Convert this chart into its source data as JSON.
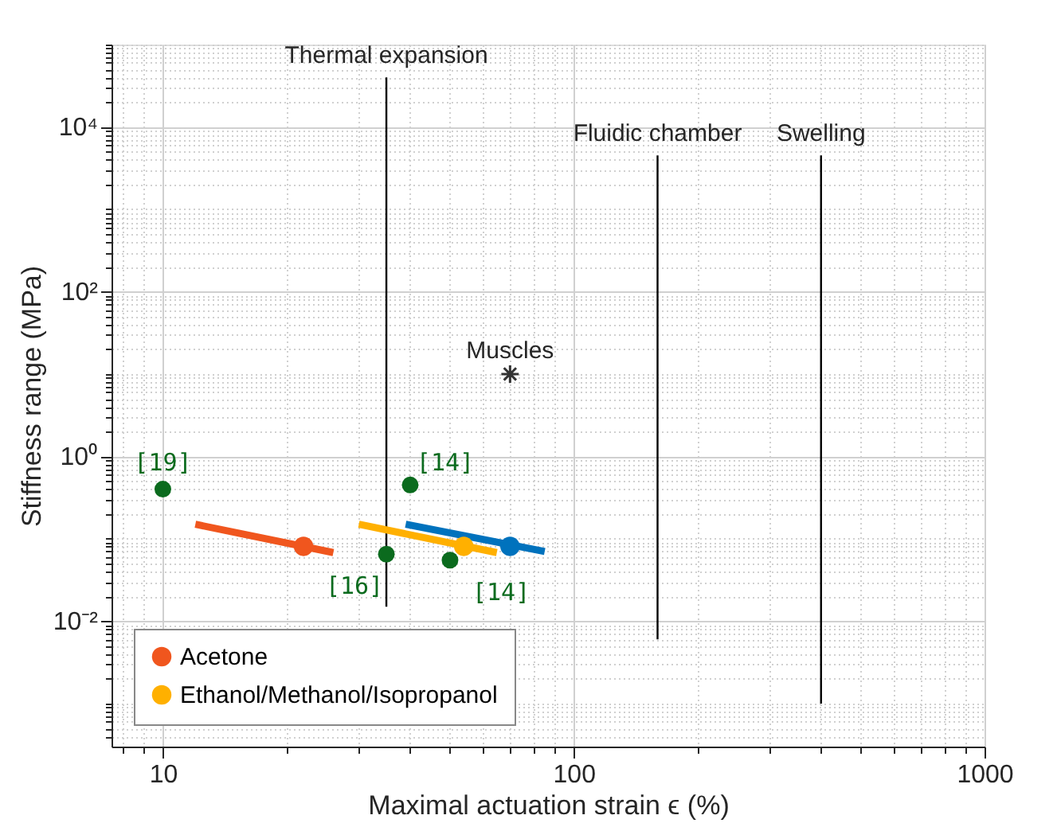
{
  "chart_data": {
    "type": "scatter",
    "xlabel": "Maximal actuation strain ϵ (%)",
    "ylabel": "Stiffness range (MPa)",
    "log": "xy",
    "grid": true,
    "legend": "bottom left",
    "xlim": [
      7.5,
      1000
    ],
    "ylim": [
      0.0003,
      100000
    ],
    "xticks": [
      {
        "value": 8,
        "label": null
      },
      {
        "value": 9,
        "label": null
      },
      10,
      {
        "value": 20,
        "label": null
      },
      {
        "value": 30,
        "label": null
      },
      {
        "value": 40,
        "label": null
      },
      {
        "value": 50,
        "label": null
      },
      {
        "value": 60,
        "label": null
      },
      {
        "value": 70,
        "label": null
      },
      {
        "value": 80,
        "label": null
      },
      {
        "value": 90,
        "label": null
      },
      100,
      {
        "value": 200,
        "label": null
      },
      {
        "value": 300,
        "label": null
      },
      {
        "value": 400,
        "label": null
      },
      {
        "value": 500,
        "label": null
      },
      {
        "value": 600,
        "label": null
      },
      {
        "value": 700,
        "label": null
      },
      {
        "value": 800,
        "label": null
      },
      {
        "value": 900,
        "label": null
      },
      1000
    ],
    "yticks": [
      {
        "value": 0.0004,
        "label": null
      },
      {
        "value": 0.0005,
        "label": null
      },
      {
        "value": 0.0006,
        "label": null
      },
      {
        "value": 0.0007,
        "label": null
      },
      {
        "value": 0.0008,
        "label": null
      },
      {
        "value": 0.0009,
        "label": null
      },
      {
        "value": 0.001,
        "label": null
      },
      {
        "value": 0.002,
        "label": null
      },
      {
        "value": 0.003,
        "label": null
      },
      {
        "value": 0.004,
        "label": null
      },
      {
        "value": 0.005,
        "label": null
      },
      {
        "value": 0.006,
        "label": null
      },
      {
        "value": 0.007,
        "label": null
      },
      {
        "value": 0.008,
        "label": null
      },
      {
        "value": 0.009,
        "label": null
      },
      {
        "value": 0.01,
        "label": "10⁻²"
      },
      {
        "value": 0.02,
        "label": null
      },
      {
        "value": 0.03,
        "label": null
      },
      {
        "value": 0.04,
        "label": null
      },
      {
        "value": 0.05,
        "label": null
      },
      {
        "value": 0.06,
        "label": null
      },
      {
        "value": 0.07,
        "label": null
      },
      {
        "value": 0.08,
        "label": null
      },
      {
        "value": 0.09,
        "label": null
      },
      {
        "value": 0.1,
        "label": null
      },
      {
        "value": 0.2,
        "label": null
      },
      {
        "value": 0.3,
        "label": null
      },
      {
        "value": 0.4,
        "label": null
      },
      {
        "value": 0.5,
        "label": null
      },
      {
        "value": 0.6,
        "label": null
      },
      {
        "value": 0.7,
        "label": null
      },
      {
        "value": 0.8,
        "label": null
      },
      {
        "value": 0.9,
        "label": null
      },
      {
        "value": 1,
        "label": "10⁰"
      },
      {
        "value": 2,
        "label": null
      },
      {
        "value": 3,
        "label": null
      },
      {
        "value": 4,
        "label": null
      },
      {
        "value": 5,
        "label": null
      },
      {
        "value": 6,
        "label": null
      },
      {
        "value": 7,
        "label": null
      },
      {
        "value": 8,
        "label": null
      },
      {
        "value": 9,
        "label": null
      },
      {
        "value": 10,
        "label": null
      },
      {
        "value": 20,
        "label": null
      },
      {
        "value": 30,
        "label": null
      },
      {
        "value": 40,
        "label": null
      },
      {
        "value": 50,
        "label": null
      },
      {
        "value": 60,
        "label": null
      },
      {
        "value": 70,
        "label": null
      },
      {
        "value": 80,
        "label": null
      },
      {
        "value": 90,
        "label": null
      },
      {
        "value": 100,
        "label": "10²"
      },
      {
        "value": 200,
        "label": null
      },
      {
        "value": 300,
        "label": null
      },
      {
        "value": 400,
        "label": null
      },
      {
        "value": 500,
        "label": null
      },
      {
        "value": 600,
        "label": null
      },
      {
        "value": 700,
        "label": null
      },
      {
        "value": 800,
        "label": null
      },
      {
        "value": 900,
        "label": null
      },
      {
        "value": 1000,
        "label": null
      },
      {
        "value": 2000,
        "label": null
      },
      {
        "value": 3000,
        "label": null
      },
      {
        "value": 4000,
        "label": null
      },
      {
        "value": 5000,
        "label": null
      },
      {
        "value": 6000,
        "label": null
      },
      {
        "value": 7000,
        "label": null
      },
      {
        "value": 8000,
        "label": null
      },
      {
        "value": 9000,
        "label": null
      },
      {
        "value": 10000,
        "label": "10⁴"
      },
      {
        "value": 20000,
        "label": null
      },
      {
        "value": 30000,
        "label": null
      },
      {
        "value": 40000,
        "label": null
      },
      {
        "value": 50000,
        "label": null
      },
      {
        "value": 60000,
        "label": null
      },
      {
        "value": 70000,
        "label": null
      },
      {
        "value": 80000,
        "label": null
      },
      {
        "value": 90000,
        "label": null
      },
      {
        "value": 100000,
        "label": null
      }
    ],
    "series": [
      {
        "type": "line",
        "color": "#000000",
        "marker": "none",
        "x": [
          35,
          35
        ],
        "values": [
          0.015,
          40000
        ]
      },
      {
        "type": "line",
        "color": "#000000",
        "marker": "none",
        "x": [
          160,
          160
        ],
        "values": [
          0.006,
          4500
        ]
      },
      {
        "type": "line",
        "color": "#000000",
        "marker": "none",
        "x": [
          400,
          400
        ],
        "values": [
          0.001,
          4500
        ]
      },
      {
        "type": "line",
        "color": "#F0561E",
        "marker": "none",
        "x": [
          12,
          26
        ],
        "values": [
          0.15,
          0.068
        ]
      },
      {
        "type": "line",
        "color": "#FFB000",
        "marker": "none",
        "x": [
          30,
          65
        ],
        "values": [
          0.15,
          0.068
        ]
      },
      {
        "type": "line",
        "color": "#0072BD",
        "marker": "none",
        "x": [
          39,
          85
        ],
        "values": [
          0.15,
          0.07
        ]
      },
      {
        "type": "scatter",
        "color": "#0072BD",
        "marker": "circle",
        "x": [
          70
        ],
        "values": [
          0.081
        ]
      },
      {
        "type": "scatter",
        "name": "Acetone",
        "color": "#F0561E",
        "marker": "circle",
        "x": [
          22
        ],
        "values": [
          0.081
        ]
      },
      {
        "type": "scatter",
        "name": "Ethanol/Methanol/Isopropanol",
        "color": "#FFB000",
        "marker": "circle",
        "x": [
          54
        ],
        "values": [
          0.081
        ]
      },
      {
        "type": "scatter",
        "color": "#0B6B1E",
        "marker": "circle",
        "x": [
          10,
          40,
          35,
          50
        ],
        "values": [
          0.4,
          0.45,
          0.065,
          0.055
        ]
      },
      {
        "type": "scatter",
        "color": "#333333",
        "marker": "cross",
        "x": [
          70
        ],
        "values": [
          10
        ]
      }
    ],
    "annotations": [
      {
        "text": "Thermal expansion",
        "x": 35,
        "y": 40000
      },
      {
        "text": "Fluidic chamber",
        "x": 160,
        "y": 4500
      },
      {
        "text": "Swelling",
        "x": 400,
        "y": 4500
      },
      {
        "text": "Muscles",
        "x": 70,
        "y": 10
      },
      {
        "text": "[19]",
        "x": 10,
        "y": 0.4
      },
      {
        "text": "[14]",
        "x": 40,
        "y": 0.45
      },
      {
        "text": "[16]",
        "x": 35,
        "y": 0.065
      },
      {
        "text": "[14]",
        "x": 50,
        "y": 0.055
      }
    ]
  }
}
